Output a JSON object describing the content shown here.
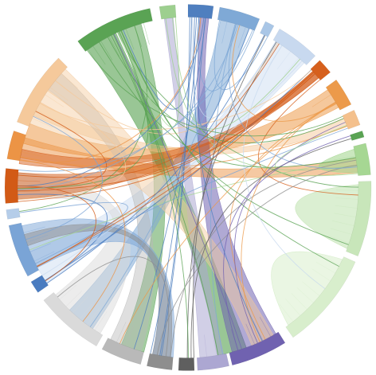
{
  "diagram": {
    "type": "chord",
    "groups": [
      {
        "id": "g-green-dark",
        "color": "#5aa354"
      },
      {
        "id": "g-green-tab",
        "color": "#9dcf8f"
      },
      {
        "id": "g-blue-dark",
        "color": "#4f7fbf"
      },
      {
        "id": "g-blue-mid",
        "color": "#7fa9d6"
      },
      {
        "id": "g-blue-pale",
        "color": "#a9c6e6"
      },
      {
        "id": "g-blue-lightest",
        "color": "#c8d9ef"
      },
      {
        "id": "g-orange-dark",
        "color": "#d6601d"
      },
      {
        "id": "g-orange-mid",
        "color": "#ec9a4a"
      },
      {
        "id": "g-orange-light",
        "color": "#f4c08c"
      },
      {
        "id": "g-green-tick",
        "color": "#5aa354"
      },
      {
        "id": "g-green-light-a",
        "color": "#a6d793"
      },
      {
        "id": "g-green-light-b",
        "color": "#c8e6ba"
      },
      {
        "id": "g-green-light-c",
        "color": "#d8eecc"
      },
      {
        "id": "g-purple-dark",
        "color": "#7062b0"
      },
      {
        "id": "g-purple-light",
        "color": "#aca7d2"
      },
      {
        "id": "g-gray-dark",
        "color": "#5f5f5f"
      },
      {
        "id": "g-gray-mid",
        "color": "#8e8e8e"
      },
      {
        "id": "g-gray-light-a",
        "color": "#b9b9b9"
      },
      {
        "id": "g-gray-light-b",
        "color": "#dadada"
      },
      {
        "id": "g-blue-left-dark",
        "color": "#4a7cc0"
      },
      {
        "id": "g-blue-left-mid",
        "color": "#7aa4d6"
      },
      {
        "id": "g-blue-left-pale",
        "color": "#b5cde9"
      },
      {
        "id": "g-orange-left-dark",
        "color": "#d25a16"
      },
      {
        "id": "g-orange-left-mid",
        "color": "#ec9445"
      },
      {
        "id": "g-orange-left-light",
        "color": "#f5c99b"
      }
    ]
  }
}
